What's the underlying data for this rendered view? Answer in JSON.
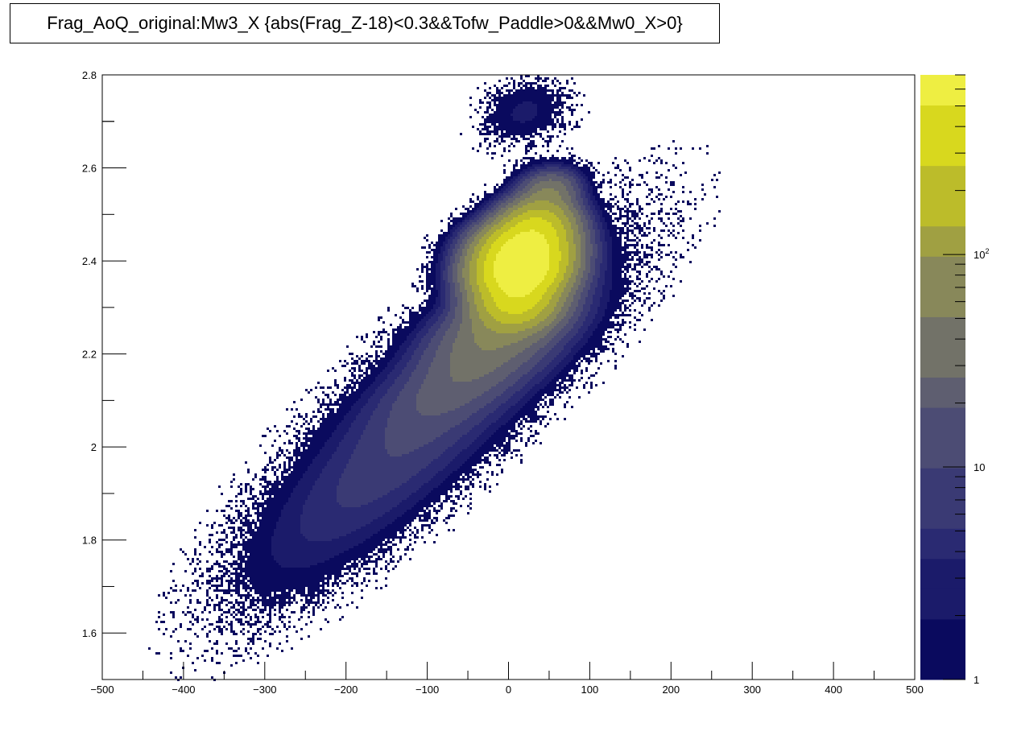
{
  "chart_data": {
    "type": "heatmap",
    "title": "Frag_AoQ_original:Mw3_X {abs(Frag_Z-18)<0.3&&Tofw_Paddle>0&&Mw0_X>0}",
    "xlabel": "",
    "ylabel": "",
    "xlim": [
      -500,
      500
    ],
    "ylim": [
      1.5,
      2.8
    ],
    "x_ticks": [
      {
        "value": -500,
        "label": "−500"
      },
      {
        "value": -400,
        "label": "−400"
      },
      {
        "value": -300,
        "label": "−300"
      },
      {
        "value": -200,
        "label": "−200"
      },
      {
        "value": -100,
        "label": "−100"
      },
      {
        "value": 0,
        "label": "0"
      },
      {
        "value": 100,
        "label": "100"
      },
      {
        "value": 200,
        "label": "200"
      },
      {
        "value": 300,
        "label": "300"
      },
      {
        "value": 400,
        "label": "400"
      },
      {
        "value": 500,
        "label": "500"
      }
    ],
    "y_ticks": [
      {
        "value": 1.6,
        "label": "1.6"
      },
      {
        "value": 1.8,
        "label": "1.8"
      },
      {
        "value": 2.0,
        "label": "2"
      },
      {
        "value": 2.2,
        "label": "2.2"
      },
      {
        "value": 2.4,
        "label": "2.4"
      },
      {
        "value": 2.6,
        "label": "2.6"
      },
      {
        "value": 2.8,
        "label": "2.8"
      }
    ],
    "z_scale": "log",
    "zlim": [
      1,
      700
    ],
    "z_ticks": [
      {
        "value": 1,
        "label": "1"
      },
      {
        "value": 10,
        "label": "10"
      },
      {
        "value": 100,
        "label": "10",
        "exponent": "2"
      }
    ],
    "palette": [
      "#0a0a5e",
      "#1b1b6a",
      "#2a2a72",
      "#3a3a74",
      "#4c4c74",
      "#5e5e70",
      "#727268",
      "#88885a",
      "#a0a042",
      "#bcbc2a",
      "#d8d81e",
      "#eeee42"
    ],
    "grid": false,
    "legend": "colorbar-right",
    "blobs": [
      {
        "x": -160,
        "y": 1.96,
        "sx": 95,
        "sy": 0.16,
        "rho": 0.82,
        "peak": 3
      },
      {
        "x": -80,
        "y": 2.08,
        "sx": 90,
        "sy": 0.15,
        "rho": 0.85,
        "peak": 6
      },
      {
        "x": -40,
        "y": 2.17,
        "sx": 60,
        "sy": 0.07,
        "rho": 0.7,
        "peak": 18
      },
      {
        "x": -10,
        "y": 2.26,
        "sx": 45,
        "sy": 0.05,
        "rho": 0.5,
        "peak": 40
      },
      {
        "x": 10,
        "y": 2.32,
        "sx": 28,
        "sy": 0.035,
        "rho": 0.1,
        "peak": 300
      },
      {
        "x": 15,
        "y": 2.38,
        "sx": 30,
        "sy": 0.03,
        "rho": 0.1,
        "peak": 600
      },
      {
        "x": 20,
        "y": 2.43,
        "sx": 30,
        "sy": 0.03,
        "rho": 0.1,
        "peak": 450
      },
      {
        "x": 35,
        "y": 2.48,
        "sx": 25,
        "sy": 0.03,
        "rho": 0.1,
        "peak": 200
      },
      {
        "x": 50,
        "y": 2.55,
        "sx": 20,
        "sy": 0.025,
        "rho": 0.1,
        "peak": 40
      },
      {
        "x": 20,
        "y": 2.72,
        "sx": 30,
        "sy": 0.04,
        "rho": 0.2,
        "peak": 2
      },
      {
        "x": -60,
        "y": 2.15,
        "sx": 130,
        "sy": 0.2,
        "rho": 0.85,
        "peak": 1.2
      }
    ]
  }
}
